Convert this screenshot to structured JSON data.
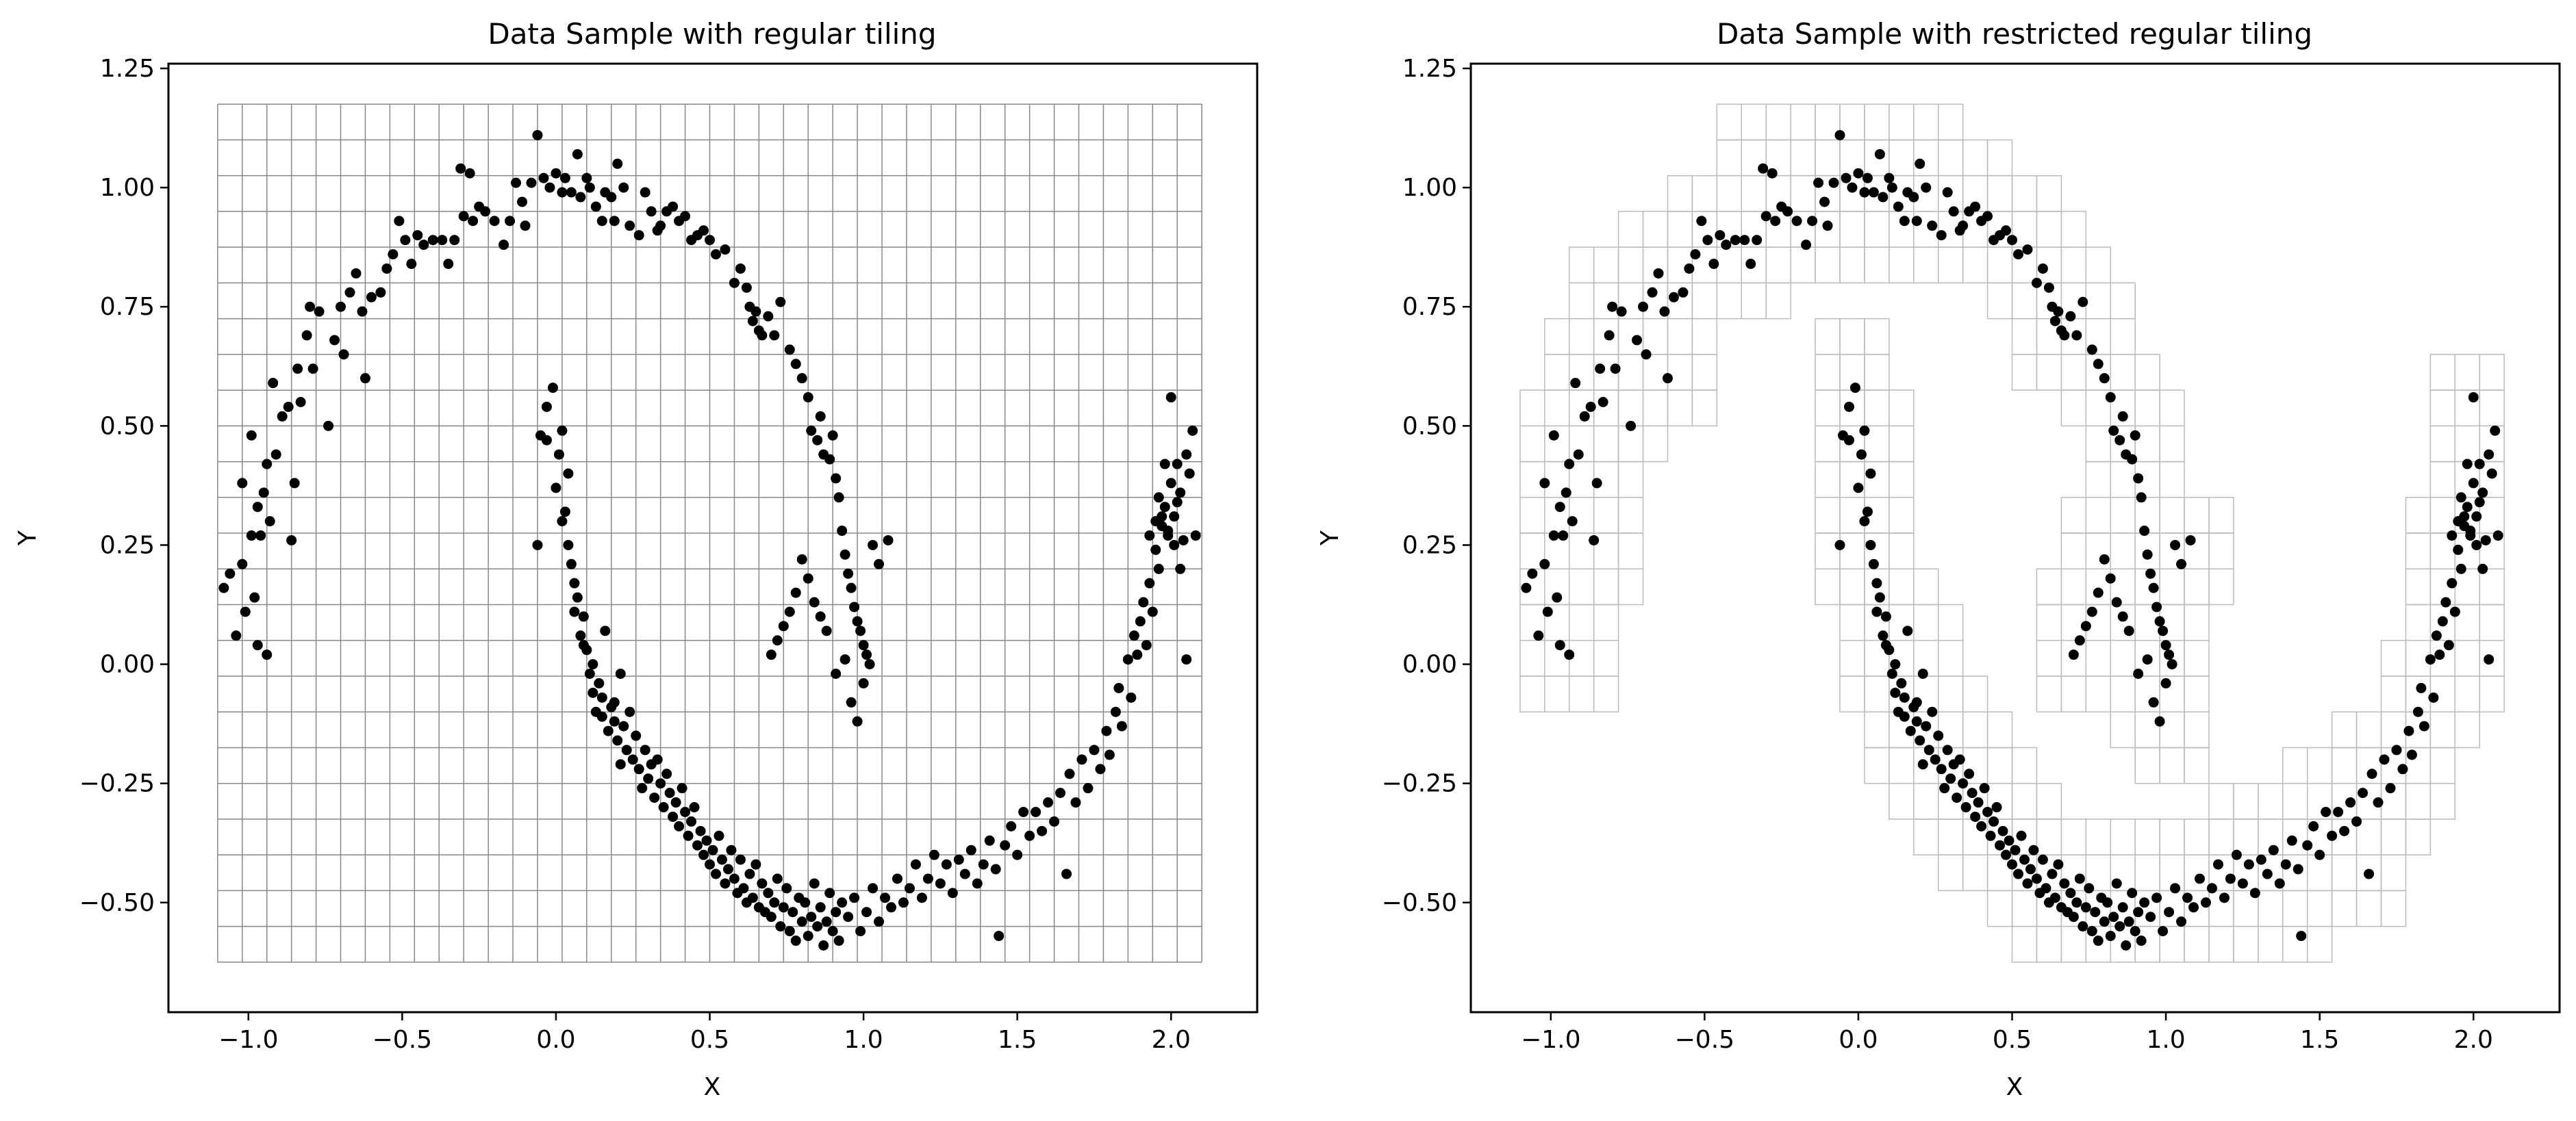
{
  "chart_data": [
    {
      "type": "scatter",
      "title": "Data Sample with regular tiling",
      "xlabel": "X",
      "ylabel": "Y",
      "xlim": [
        -1.26,
        2.28
      ],
      "ylim": [
        -0.73,
        1.26
      ],
      "xticks": [
        -1.0,
        -0.5,
        0.0,
        0.5,
        1.0,
        1.5,
        2.0
      ],
      "yticks": [
        -0.5,
        -0.25,
        0.0,
        0.25,
        0.5,
        0.75,
        1.0,
        1.25
      ],
      "xtick_labels": [
        "−1.0",
        "−0.5",
        "0.0",
        "0.5",
        "1.0",
        "1.5",
        "2.0"
      ],
      "ytick_labels": [
        "−0.50",
        "−0.25",
        "0.00",
        "0.25",
        "0.50",
        "0.75",
        "1.00",
        "1.25"
      ],
      "tiling": "regular",
      "grid_extent": {
        "x": [
          -1.1,
          2.1
        ],
        "y": [
          -0.625,
          1.175
        ]
      },
      "cell_size": {
        "dx": 0.08,
        "dy": 0.075
      },
      "point_color": "#000000",
      "grid_color": "#888888"
    },
    {
      "type": "scatter",
      "title": "Data Sample with restricted regular tiling",
      "xlabel": "X",
      "ylabel": "Y",
      "xlim": [
        -1.26,
        2.28
      ],
      "ylim": [
        -0.73,
        1.26
      ],
      "xticks": [
        -1.0,
        -0.5,
        0.0,
        0.5,
        1.0,
        1.5,
        2.0
      ],
      "yticks": [
        -0.5,
        -0.25,
        0.0,
        0.25,
        0.5,
        0.75,
        1.0,
        1.25
      ],
      "xtick_labels": [
        "−1.0",
        "−0.5",
        "0.0",
        "0.5",
        "1.0",
        "1.5",
        "2.0"
      ],
      "ytick_labels": [
        "−0.50",
        "−0.25",
        "0.00",
        "0.25",
        "0.50",
        "0.75",
        "1.00",
        "1.25"
      ],
      "tiling": "restricted",
      "grid_extent": {
        "x": [
          -1.1,
          2.1
        ],
        "y": [
          -0.625,
          1.175
        ]
      },
      "cell_size": {
        "dx": 0.08,
        "dy": 0.075
      },
      "point_color": "#000000",
      "grid_color": "#bbbbbb"
    }
  ],
  "points": [
    [
      -1.08,
      0.16
    ],
    [
      -1.06,
      0.19
    ],
    [
      -1.04,
      0.06
    ],
    [
      -1.02,
      0.21
    ],
    [
      -1.02,
      0.38
    ],
    [
      -1.01,
      0.11
    ],
    [
      -0.99,
      0.27
    ],
    [
      -0.99,
      0.48
    ],
    [
      -0.98,
      0.14
    ],
    [
      -0.97,
      0.33
    ],
    [
      -0.97,
      0.04
    ],
    [
      -0.96,
      0.27
    ],
    [
      -0.95,
      0.36
    ],
    [
      -0.94,
      0.42
    ],
    [
      -0.94,
      0.02
    ],
    [
      -0.93,
      0.3
    ],
    [
      -0.92,
      0.59
    ],
    [
      -0.91,
      0.44
    ],
    [
      -0.89,
      0.52
    ],
    [
      -0.87,
      0.54
    ],
    [
      -0.86,
      0.26
    ],
    [
      -0.85,
      0.38
    ],
    [
      -0.84,
      0.62
    ],
    [
      -0.83,
      0.55
    ],
    [
      -0.81,
      0.69
    ],
    [
      -0.8,
      0.75
    ],
    [
      -0.79,
      0.62
    ],
    [
      -0.77,
      0.74
    ],
    [
      -0.74,
      0.5
    ],
    [
      -0.72,
      0.68
    ],
    [
      -0.7,
      0.75
    ],
    [
      -0.69,
      0.65
    ],
    [
      -0.67,
      0.78
    ],
    [
      -0.65,
      0.82
    ],
    [
      -0.63,
      0.74
    ],
    [
      -0.62,
      0.6
    ],
    [
      -0.6,
      0.77
    ],
    [
      -0.57,
      0.78
    ],
    [
      -0.55,
      0.83
    ],
    [
      -0.53,
      0.86
    ],
    [
      -0.51,
      0.93
    ],
    [
      -0.49,
      0.89
    ],
    [
      -0.47,
      0.84
    ],
    [
      -0.45,
      0.9
    ],
    [
      -0.43,
      0.88
    ],
    [
      -0.4,
      0.89
    ],
    [
      -0.37,
      0.89
    ],
    [
      -0.35,
      0.84
    ],
    [
      -0.33,
      0.89
    ],
    [
      -0.31,
      1.04
    ],
    [
      -0.3,
      0.94
    ],
    [
      -0.28,
      1.03
    ],
    [
      -0.27,
      0.93
    ],
    [
      -0.25,
      0.96
    ],
    [
      -0.23,
      0.95
    ],
    [
      -0.2,
      0.93
    ],
    [
      -0.17,
      0.88
    ],
    [
      -0.15,
      0.93
    ],
    [
      -0.13,
      1.01
    ],
    [
      -0.11,
      0.97
    ],
    [
      -0.1,
      0.92
    ],
    [
      -0.08,
      1.01
    ],
    [
      -0.06,
      1.11
    ],
    [
      -0.04,
      1.02
    ],
    [
      -0.02,
      1.0
    ],
    [
      0.0,
      1.03
    ],
    [
      0.02,
      0.99
    ],
    [
      0.03,
      1.02
    ],
    [
      0.05,
      0.99
    ],
    [
      0.07,
      1.07
    ],
    [
      0.08,
      0.98
    ],
    [
      0.1,
      1.02
    ],
    [
      0.11,
      1.0
    ],
    [
      0.13,
      0.96
    ],
    [
      0.15,
      0.93
    ],
    [
      0.16,
      0.99
    ],
    [
      0.18,
      0.98
    ],
    [
      0.19,
      0.93
    ],
    [
      0.2,
      1.05
    ],
    [
      0.22,
      1.0
    ],
    [
      0.24,
      0.92
    ],
    [
      0.27,
      0.9
    ],
    [
      0.29,
      0.99
    ],
    [
      0.31,
      0.95
    ],
    [
      0.33,
      0.91
    ],
    [
      0.34,
      0.92
    ],
    [
      0.36,
      0.95
    ],
    [
      0.38,
      0.96
    ],
    [
      0.4,
      0.93
    ],
    [
      0.42,
      0.94
    ],
    [
      0.44,
      0.89
    ],
    [
      0.46,
      0.9
    ],
    [
      0.48,
      0.91
    ],
    [
      0.5,
      0.89
    ],
    [
      0.52,
      0.86
    ],
    [
      0.55,
      0.87
    ],
    [
      0.58,
      0.8
    ],
    [
      0.6,
      0.83
    ],
    [
      0.62,
      0.79
    ],
    [
      0.63,
      0.75
    ],
    [
      0.64,
      0.72
    ],
    [
      0.65,
      0.74
    ],
    [
      0.66,
      0.7
    ],
    [
      0.67,
      0.69
    ],
    [
      0.69,
      0.73
    ],
    [
      0.71,
      0.69
    ],
    [
      0.73,
      0.76
    ],
    [
      0.76,
      0.66
    ],
    [
      0.78,
      0.63
    ],
    [
      0.8,
      0.6
    ],
    [
      0.82,
      0.56
    ],
    [
      0.83,
      0.49
    ],
    [
      0.85,
      0.47
    ],
    [
      0.86,
      0.52
    ],
    [
      0.87,
      0.44
    ],
    [
      0.89,
      0.43
    ],
    [
      0.9,
      0.48
    ],
    [
      0.91,
      0.39
    ],
    [
      0.92,
      0.35
    ],
    [
      0.93,
      0.28
    ],
    [
      0.94,
      0.23
    ],
    [
      0.95,
      0.19
    ],
    [
      0.96,
      0.16
    ],
    [
      0.97,
      0.12
    ],
    [
      0.98,
      0.09
    ],
    [
      0.99,
      0.07
    ],
    [
      1.0,
      0.04
    ],
    [
      1.01,
      0.02
    ],
    [
      1.03,
      0.25
    ],
    [
      1.05,
      0.21
    ],
    [
      1.08,
      0.26
    ],
    [
      -0.06,
      0.25
    ],
    [
      -0.05,
      0.48
    ],
    [
      -0.03,
      0.54
    ],
    [
      -0.01,
      0.58
    ],
    [
      0.0,
      0.37
    ],
    [
      0.01,
      0.44
    ],
    [
      0.02,
      0.49
    ],
    [
      0.03,
      0.32
    ],
    [
      0.04,
      0.4
    ],
    [
      0.05,
      0.21
    ],
    [
      0.06,
      0.17
    ],
    [
      0.07,
      0.14
    ],
    [
      0.08,
      0.06
    ],
    [
      0.09,
      0.1
    ],
    [
      0.1,
      0.03
    ],
    [
      0.11,
      -0.02
    ],
    [
      0.12,
      -0.06
    ],
    [
      0.13,
      -0.1
    ],
    [
      0.14,
      -0.04
    ],
    [
      0.15,
      -0.11
    ],
    [
      0.16,
      0.07
    ],
    [
      0.17,
      -0.14
    ],
    [
      0.18,
      -0.09
    ],
    [
      0.19,
      -0.12
    ],
    [
      0.2,
      -0.16
    ],
    [
      0.21,
      -0.02
    ],
    [
      0.22,
      -0.13
    ],
    [
      0.23,
      -0.18
    ],
    [
      0.24,
      -0.1
    ],
    [
      0.25,
      -0.2
    ],
    [
      0.26,
      -0.15
    ],
    [
      0.27,
      -0.22
    ],
    [
      0.28,
      -0.26
    ],
    [
      0.29,
      -0.18
    ],
    [
      0.3,
      -0.24
    ],
    [
      0.31,
      -0.21
    ],
    [
      0.32,
      -0.28
    ],
    [
      0.33,
      -0.2
    ],
    [
      0.34,
      -0.25
    ],
    [
      0.35,
      -0.3
    ],
    [
      0.36,
      -0.23
    ],
    [
      0.37,
      -0.27
    ],
    [
      0.38,
      -0.32
    ],
    [
      0.39,
      -0.29
    ],
    [
      0.4,
      -0.34
    ],
    [
      0.41,
      -0.26
    ],
    [
      0.42,
      -0.31
    ],
    [
      0.43,
      -0.36
    ],
    [
      0.44,
      -0.33
    ],
    [
      0.45,
      -0.3
    ],
    [
      0.46,
      -0.38
    ],
    [
      0.47,
      -0.35
    ],
    [
      0.48,
      -0.4
    ],
    [
      0.49,
      -0.37
    ],
    [
      0.5,
      -0.42
    ],
    [
      0.51,
      -0.39
    ],
    [
      0.52,
      -0.44
    ],
    [
      0.53,
      -0.36
    ],
    [
      0.54,
      -0.41
    ],
    [
      0.55,
      -0.46
    ],
    [
      0.56,
      -0.43
    ],
    [
      0.57,
      -0.39
    ],
    [
      0.58,
      -0.45
    ],
    [
      0.59,
      -0.48
    ],
    [
      0.6,
      -0.41
    ],
    [
      0.61,
      -0.47
    ],
    [
      0.62,
      -0.5
    ],
    [
      0.63,
      -0.44
    ],
    [
      0.64,
      -0.49
    ],
    [
      0.65,
      -0.42
    ],
    [
      0.66,
      -0.51
    ],
    [
      0.67,
      -0.46
    ],
    [
      0.68,
      -0.52
    ],
    [
      0.69,
      -0.48
    ],
    [
      0.7,
      -0.53
    ],
    [
      0.71,
      -0.5
    ],
    [
      0.72,
      -0.45
    ],
    [
      0.73,
      -0.55
    ],
    [
      0.74,
      -0.51
    ],
    [
      0.75,
      -0.47
    ],
    [
      0.76,
      -0.56
    ],
    [
      0.77,
      -0.52
    ],
    [
      0.78,
      -0.58
    ],
    [
      0.79,
      -0.49
    ],
    [
      0.8,
      -0.54
    ],
    [
      0.81,
      -0.5
    ],
    [
      0.82,
      -0.57
    ],
    [
      0.83,
      -0.53
    ],
    [
      0.84,
      -0.46
    ],
    [
      0.85,
      -0.55
    ],
    [
      0.86,
      -0.51
    ],
    [
      0.87,
      -0.59
    ],
    [
      0.88,
      -0.54
    ],
    [
      0.89,
      -0.48
    ],
    [
      0.9,
      -0.56
    ],
    [
      0.91,
      -0.52
    ],
    [
      0.92,
      -0.58
    ],
    [
      0.93,
      -0.5
    ],
    [
      0.95,
      -0.53
    ],
    [
      0.97,
      -0.49
    ],
    [
      0.99,
      -0.56
    ],
    [
      1.01,
      -0.52
    ],
    [
      1.03,
      -0.47
    ],
    [
      1.05,
      -0.54
    ],
    [
      1.07,
      -0.49
    ],
    [
      1.09,
      -0.51
    ],
    [
      1.11,
      -0.45
    ],
    [
      1.13,
      -0.5
    ],
    [
      1.15,
      -0.47
    ],
    [
      1.17,
      -0.42
    ],
    [
      1.19,
      -0.49
    ],
    [
      1.21,
      -0.45
    ],
    [
      1.23,
      -0.4
    ],
    [
      1.25,
      -0.46
    ],
    [
      1.27,
      -0.42
    ],
    [
      1.29,
      -0.48
    ],
    [
      1.31,
      -0.41
    ],
    [
      1.33,
      -0.44
    ],
    [
      1.35,
      -0.39
    ],
    [
      1.37,
      -0.46
    ],
    [
      1.39,
      -0.42
    ],
    [
      1.41,
      -0.37
    ],
    [
      1.43,
      -0.43
    ],
    [
      1.44,
      -0.57
    ],
    [
      1.46,
      -0.38
    ],
    [
      1.48,
      -0.34
    ],
    [
      1.5,
      -0.4
    ],
    [
      1.52,
      -0.31
    ],
    [
      1.54,
      -0.36
    ],
    [
      1.56,
      -0.31
    ],
    [
      1.58,
      -0.35
    ],
    [
      1.6,
      -0.29
    ],
    [
      1.62,
      -0.33
    ],
    [
      1.64,
      -0.27
    ],
    [
      1.66,
      -0.44
    ],
    [
      1.67,
      -0.23
    ],
    [
      1.69,
      -0.29
    ],
    [
      1.71,
      -0.2
    ],
    [
      1.73,
      -0.26
    ],
    [
      1.75,
      -0.18
    ],
    [
      1.77,
      -0.22
    ],
    [
      1.79,
      -0.14
    ],
    [
      1.8,
      -0.19
    ],
    [
      1.82,
      -0.1
    ],
    [
      1.83,
      -0.05
    ],
    [
      1.84,
      -0.13
    ],
    [
      1.86,
      0.01
    ],
    [
      1.87,
      -0.07
    ],
    [
      1.88,
      0.06
    ],
    [
      1.89,
      0.02
    ],
    [
      1.9,
      0.09
    ],
    [
      1.91,
      0.13
    ],
    [
      1.92,
      0.04
    ],
    [
      1.93,
      0.17
    ],
    [
      1.94,
      0.11
    ],
    [
      1.95,
      0.24
    ],
    [
      1.96,
      0.2
    ],
    [
      1.97,
      0.29
    ],
    [
      1.98,
      0.33
    ],
    [
      1.99,
      0.27
    ],
    [
      2.0,
      0.38
    ],
    [
      2.01,
      0.31
    ],
    [
      2.02,
      0.42
    ],
    [
      2.03,
      0.36
    ],
    [
      2.04,
      0.26
    ],
    [
      2.05,
      0.44
    ],
    [
      2.06,
      0.4
    ],
    [
      2.07,
      0.49
    ],
    [
      2.08,
      0.27
    ],
    [
      1.93,
      0.27
    ],
    [
      1.95,
      0.3
    ],
    [
      1.96,
      0.35
    ],
    [
      1.97,
      0.31
    ],
    [
      1.98,
      0.42
    ],
    [
      1.99,
      0.28
    ],
    [
      2.0,
      0.56
    ],
    [
      2.01,
      0.25
    ],
    [
      2.02,
      0.34
    ],
    [
      2.03,
      0.2
    ],
    [
      2.05,
      0.01
    ],
    [
      0.96,
      -0.08
    ],
    [
      0.98,
      -0.12
    ],
    [
      1.0,
      -0.04
    ],
    [
      1.02,
      0.0
    ],
    [
      0.94,
      0.01
    ],
    [
      0.91,
      -0.02
    ],
    [
      0.88,
      0.07
    ],
    [
      0.86,
      0.1
    ],
    [
      0.84,
      0.13
    ],
    [
      0.82,
      0.18
    ],
    [
      0.8,
      0.22
    ],
    [
      0.78,
      0.15
    ],
    [
      0.76,
      0.11
    ],
    [
      0.74,
      0.08
    ],
    [
      0.72,
      0.05
    ],
    [
      0.7,
      0.02
    ],
    [
      -0.03,
      0.47
    ],
    [
      0.02,
      0.3
    ],
    [
      0.04,
      0.25
    ],
    [
      0.06,
      0.11
    ],
    [
      0.09,
      0.04
    ],
    [
      0.12,
      0.0
    ],
    [
      0.15,
      -0.07
    ],
    [
      0.19,
      -0.08
    ],
    [
      0.21,
      -0.21
    ]
  ]
}
